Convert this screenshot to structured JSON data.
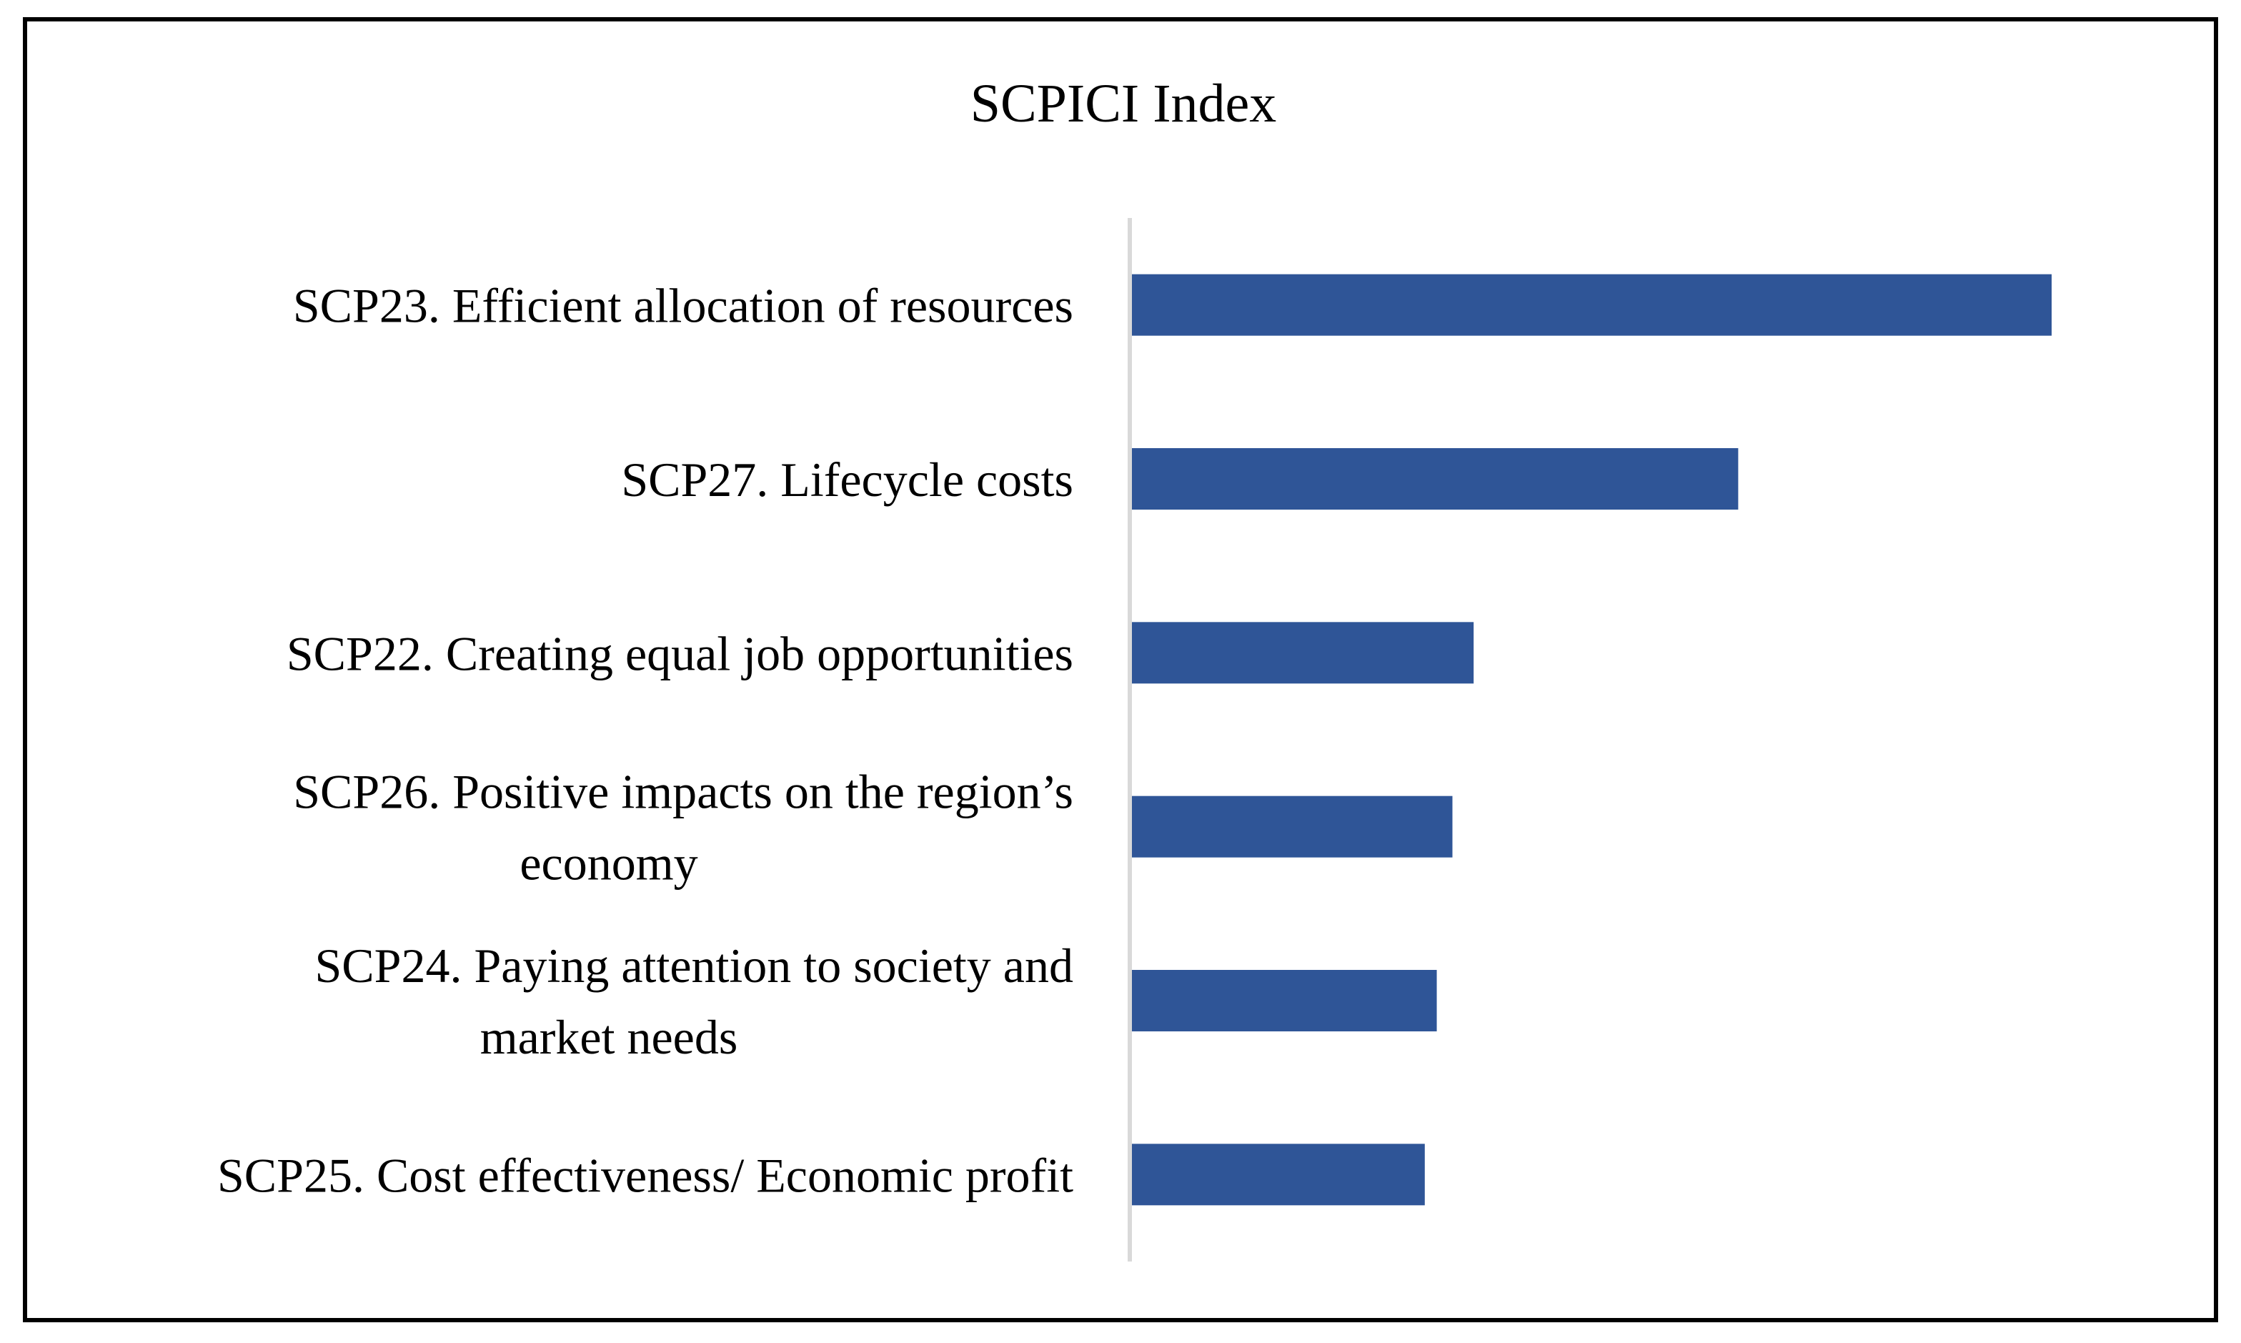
{
  "chart_data": {
    "type": "bar",
    "orientation": "horizontal",
    "title": "SCPICI Index",
    "xlabel": "",
    "ylabel": "",
    "categories": [
      "SCP23. Efficient allocation of resources",
      "SCP27. Lifecycle costs",
      "SCP22. Creating equal job opportunities",
      "SCP26. Positive impacts on the region’s economy",
      "SCP24. Paying attention to society and market needs",
      "SCP25. Cost effectiveness/ Economic profit"
    ],
    "category_lines": [
      [
        "SCP23. Efficient allocation of resources"
      ],
      [
        "SCP27. Lifecycle costs"
      ],
      [
        "SCP22. Creating equal job opportunities"
      ],
      [
        "SCP26. Positive impacts on the region’s",
        "economy"
      ],
      [
        "SCP24. Paying attention to society and",
        "market needs"
      ],
      [
        "SCP25. Cost effectiveness/ Economic profit"
      ]
    ],
    "values": [
      1.0,
      0.66,
      0.373,
      0.35,
      0.333,
      0.32
    ],
    "xlim": [
      0,
      1.1
    ],
    "bar_color": "#2f5597",
    "axis_color": "#d9d9d9",
    "grid": false,
    "legend": "none",
    "data_labels": false
  }
}
